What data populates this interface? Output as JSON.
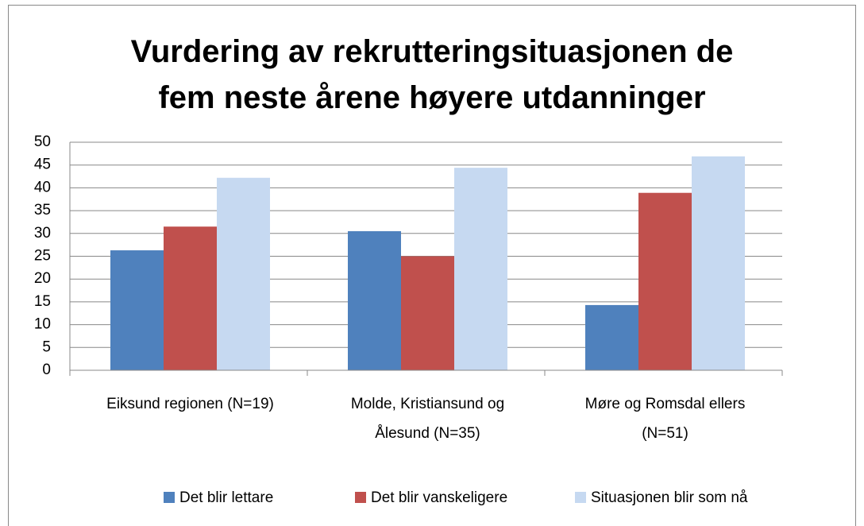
{
  "chart_data": {
    "type": "bar",
    "title": "Vurdering av rekrutteringsituasjonen de\nfem neste årene   høyere utdanninger",
    "categories": [
      "Eiksund regionen (N=19)",
      "Molde, Kristiansund og Ålesund (N=35)",
      "Møre og Romsdal ellers (N=51)"
    ],
    "series": [
      {
        "name": "Det blir lettare",
        "color": "#4f81bd",
        "values": [
          26.3,
          30.5,
          14.3
        ]
      },
      {
        "name": "Det blir vanskeligere",
        "color": "#c0504d",
        "values": [
          31.5,
          25,
          38.9
        ]
      },
      {
        "name": "Situasjonen blir som nå",
        "color": "#c6d9f1",
        "values": [
          42.2,
          44.4,
          46.9
        ]
      }
    ],
    "ylim": [
      0,
      50
    ],
    "yticks": [
      0,
      5,
      10,
      15,
      20,
      25,
      30,
      35,
      40,
      45,
      50
    ],
    "grid": true,
    "legend": "bottom"
  }
}
